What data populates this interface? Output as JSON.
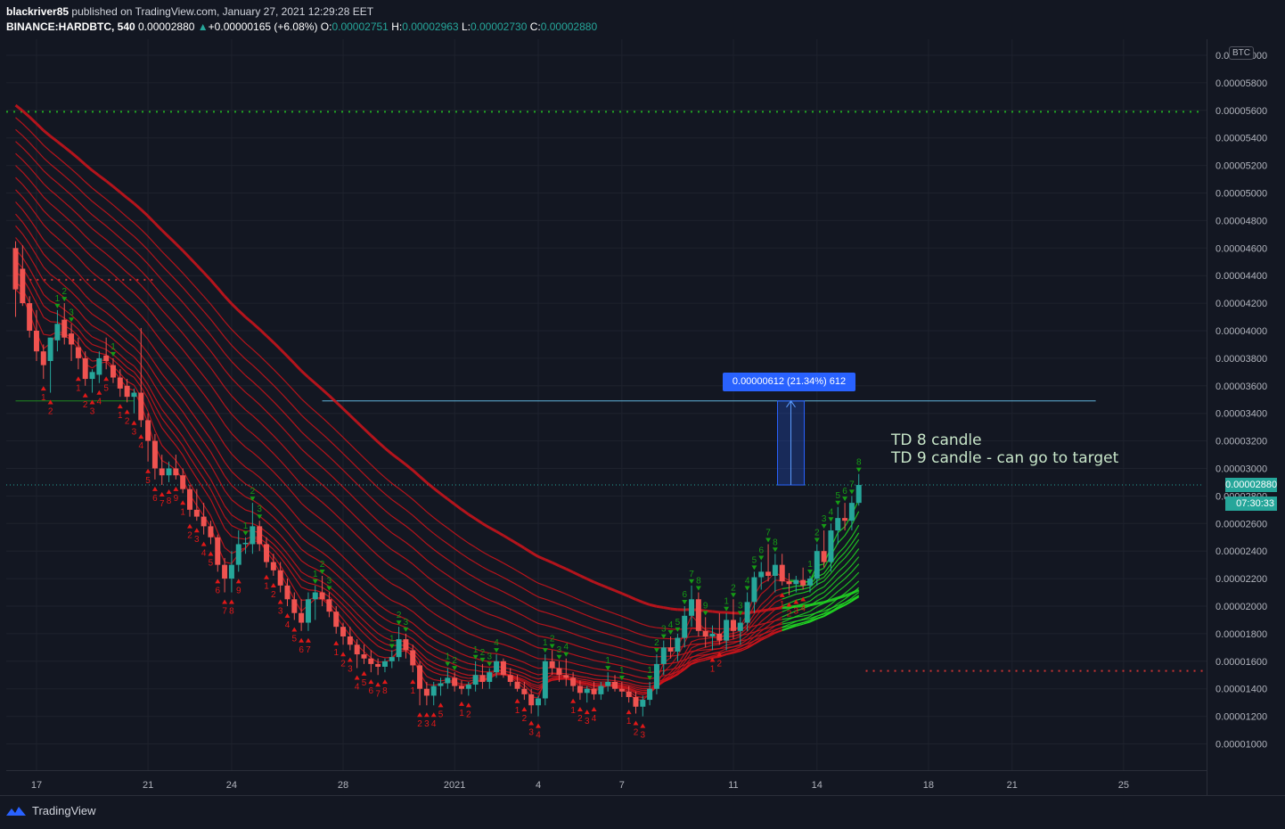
{
  "header": {
    "publisher": "blackriver85",
    "published_text": "published on TradingView.com, January 27, 2021 12:29:28 EET",
    "symbol": "BINANCE:HARDBTC, 540",
    "last": "0.00002880",
    "change_arrow": "▲",
    "change": "+0.00000165 (+6.08%)",
    "o_label": "O:",
    "o_value": "0.00002751",
    "h_label": "H:",
    "h_value": "0.00002963",
    "l_label": "L:",
    "l_value": "0.00002730",
    "c_label": "C:",
    "c_value": "0.00002880"
  },
  "footer": {
    "brand": "TradingView",
    "logo_icon": "tradingview-logo-icon"
  },
  "currency_label": "BTC",
  "measure": {
    "label": "0.00000612 (21.34%) 612"
  },
  "annotation": {
    "line1": "TD 8 candle",
    "line2": "TD 9 candle - can go to target"
  },
  "price_tags": {
    "last_price": "0.00002880",
    "countdown": "07:30:33"
  },
  "colors": {
    "background": "#131722",
    "up": "#26a69a",
    "down": "#ef5350",
    "ribbon_red": "#d1141b",
    "ribbon_green": "#22dd22",
    "td_up": "#159c15",
    "td_down": "#e01818",
    "measure": "#2962ff"
  },
  "chart_data": {
    "type": "candlestick",
    "title": "",
    "xlabel": "",
    "ylabel": "",
    "ylim": [
      8.8e-06,
      6.5e-06
    ],
    "y_ticks": [
      "0.00001000",
      "0.00001200",
      "0.00001400",
      "0.00001600",
      "0.00001800",
      "0.00002000",
      "0.00002200",
      "0.00002400",
      "0.00002600",
      "0.00002800",
      "0.00003000",
      "0.00003200",
      "0.00003400",
      "0.00003600",
      "0.00003800",
      "0.00004000",
      "0.00004200",
      "0.00004400",
      "0.00004600",
      "0.00004800",
      "0.00005000",
      "0.00005200",
      "0.00005400",
      "0.00005600",
      "0.00005800",
      "0.00006000"
    ],
    "x_ticks": [
      {
        "label": "17",
        "bar": 3
      },
      {
        "label": "21",
        "bar": 19
      },
      {
        "label": "24",
        "bar": 31
      },
      {
        "label": "28",
        "bar": 47
      },
      {
        "label": "2021",
        "bar": 63
      },
      {
        "label": "4",
        "bar": 75
      },
      {
        "label": "7",
        "bar": 87
      },
      {
        "label": "11",
        "bar": 103
      },
      {
        "label": "14",
        "bar": 115
      },
      {
        "label": "18",
        "bar": 131
      },
      {
        "label": "21",
        "bar": 143
      },
      {
        "label": "25",
        "bar": 159
      }
    ],
    "horizontal_levels": [
      {
        "name": "resistance-dotted",
        "price": 5.59e-05,
        "style": "dotted",
        "color": "#22aa22"
      },
      {
        "name": "td-resistance-dotted",
        "price": 4.37e-05,
        "style": "dotted",
        "color": "#cc3333",
        "from_bar": 1,
        "to_bar": 20
      },
      {
        "name": "td-support-line",
        "price": 3.49e-05,
        "style": "solid",
        "color": "#1e8a1e",
        "from_bar": 0,
        "to_bar": 17
      },
      {
        "name": "target-line",
        "price": 3.49e-05,
        "style": "solid",
        "color": "#5fb3d9",
        "from_bar": 44,
        "to_bar": 155
      },
      {
        "name": "support-dotted",
        "price": 1.53e-05,
        "style": "dotted",
        "color": "#cc3333",
        "from_bar": 122,
        "to_bar": 171
      },
      {
        "name": "last-price",
        "price": 2.88e-05,
        "style": "dotted",
        "color": "#26a69a"
      }
    ],
    "measure_range": {
      "from": 2.88e-05,
      "to": 3.49e-05,
      "at_bar": 111
    },
    "candles": [
      [
        4.6e-05,
        4.65e-05,
        4.1e-05,
        4.3e-05
      ],
      [
        4.45e-05,
        4.62e-05,
        4.18e-05,
        4.2e-05
      ],
      [
        4.2e-05,
        4.25e-05,
        3.95e-05,
        4e-05
      ],
      [
        4e-05,
        4.15e-05,
        3.78e-05,
        3.85e-05
      ],
      [
        3.85e-05,
        3.9e-05,
        3.65e-05,
        3.75e-05
      ],
      [
        3.78e-05,
        3.95e-05,
        3.55e-05,
        3.95e-05
      ],
      [
        3.93e-05,
        4.15e-05,
        3.85e-05,
        4.05e-05
      ],
      [
        4.08e-05,
        4.2e-05,
        3.9e-05,
        3.95e-05
      ],
      [
        3.98e-05,
        4.05e-05,
        3.78e-05,
        3.9e-05
      ],
      [
        3.88e-05,
        3.95e-05,
        3.72e-05,
        3.8e-05
      ],
      [
        3.8e-05,
        3.85e-05,
        3.6e-05,
        3.65e-05
      ],
      [
        3.65e-05,
        3.72e-05,
        3.55e-05,
        3.7e-05
      ],
      [
        3.68e-05,
        3.85e-05,
        3.62e-05,
        3.8e-05
      ],
      [
        3.82e-05,
        3.95e-05,
        3.72e-05,
        3.78e-05
      ],
      [
        3.75e-05,
        3.8e-05,
        3.62e-05,
        3.66e-05
      ],
      [
        3.66e-05,
        3.72e-05,
        3.52e-05,
        3.58e-05
      ],
      [
        3.6e-05,
        3.65e-05,
        3.48e-05,
        3.52e-05
      ],
      [
        3.52e-05,
        3.58e-05,
        3.4e-05,
        3.55e-05
      ],
      [
        3.55e-05,
        4.02e-05,
        3.3e-05,
        3.35e-05
      ],
      [
        3.35e-05,
        3.4e-05,
        3.05e-05,
        3.2e-05
      ],
      [
        3.2e-05,
        3.25e-05,
        2.92e-05,
        3e-05
      ],
      [
        3e-05,
        3.1e-05,
        2.88e-05,
        2.95e-05
      ],
      [
        2.95e-05,
        3.05e-05,
        2.9e-05,
        3e-05
      ],
      [
        3e-05,
        3.1e-05,
        2.92e-05,
        2.95e-05
      ],
      [
        2.95e-05,
        3e-05,
        2.82e-05,
        2.85e-05
      ],
      [
        2.85e-05,
        2.88e-05,
        2.65e-05,
        2.7e-05
      ],
      [
        2.7e-05,
        2.85e-05,
        2.62e-05,
        2.65e-05
      ],
      [
        2.65e-05,
        2.75e-05,
        2.52e-05,
        2.58e-05
      ],
      [
        2.58e-05,
        2.62e-05,
        2.45e-05,
        2.5e-05
      ],
      [
        2.5e-05,
        2.52e-05,
        2.25e-05,
        2.3e-05
      ],
      [
        2.3e-05,
        2.35e-05,
        2.1e-05,
        2.2e-05
      ],
      [
        2.2e-05,
        2.4e-05,
        2.1e-05,
        2.3e-05
      ],
      [
        2.3e-05,
        2.55e-05,
        2.25e-05,
        2.45e-05
      ],
      [
        2.45e-05,
        2.5e-05,
        2.38e-05,
        2.46e-05
      ],
      [
        2.45e-05,
        2.75e-05,
        2.38e-05,
        2.58e-05
      ],
      [
        2.58e-05,
        2.62e-05,
        2.4e-05,
        2.45e-05
      ],
      [
        2.45e-05,
        2.5e-05,
        2.28e-05,
        2.32e-05
      ],
      [
        2.32e-05,
        2.38e-05,
        2.22e-05,
        2.26e-05
      ],
      [
        2.26e-05,
        2.32e-05,
        2.1e-05,
        2.15e-05
      ],
      [
        2.15e-05,
        2.2e-05,
        2e-05,
        2.05e-05
      ],
      [
        2.05e-05,
        2.1e-05,
        1.9e-05,
        1.95e-05
      ],
      [
        1.95e-05,
        2.05e-05,
        1.82e-05,
        1.88e-05
      ],
      [
        1.88e-05,
        2.1e-05,
        1.82e-05,
        2.05e-05
      ],
      [
        2.05e-05,
        2.15e-05,
        1.9e-05,
        2.1e-05
      ],
      [
        2.1e-05,
        2.22e-05,
        2e-05,
        2.05e-05
      ],
      [
        2.05e-05,
        2.1e-05,
        1.92e-05,
        1.96e-05
      ],
      [
        1.96e-05,
        2e-05,
        1.8e-05,
        1.85e-05
      ],
      [
        1.85e-05,
        1.88e-05,
        1.72e-05,
        1.78e-05
      ],
      [
        1.78e-05,
        1.85e-05,
        1.68e-05,
        1.72e-05
      ],
      [
        1.72e-05,
        1.76e-05,
        1.55e-05,
        1.65e-05
      ],
      [
        1.65e-05,
        1.72e-05,
        1.58e-05,
        1.62e-05
      ],
      [
        1.62e-05,
        1.68e-05,
        1.52e-05,
        1.58e-05
      ],
      [
        1.58e-05,
        1.62e-05,
        1.5e-05,
        1.56e-05
      ],
      [
        1.56e-05,
        1.62e-05,
        1.52e-05,
        1.6e-05
      ],
      [
        1.6e-05,
        1.68e-05,
        1.55e-05,
        1.63e-05
      ],
      [
        1.63e-05,
        1.85e-05,
        1.6e-05,
        1.76e-05
      ],
      [
        1.76e-05,
        1.8e-05,
        1.62e-05,
        1.68e-05
      ],
      [
        1.68e-05,
        1.72e-05,
        1.52e-05,
        1.57e-05
      ],
      [
        1.57e-05,
        1.6e-05,
        1.28e-05,
        1.4e-05
      ],
      [
        1.4e-05,
        1.45e-05,
        1.28e-05,
        1.35e-05
      ],
      [
        1.35e-05,
        1.45e-05,
        1.28e-05,
        1.42e-05
      ],
      [
        1.42e-05,
        1.48e-05,
        1.35e-05,
        1.44e-05
      ],
      [
        1.44e-05,
        1.55e-05,
        1.4e-05,
        1.48e-05
      ],
      [
        1.48e-05,
        1.52e-05,
        1.38e-05,
        1.42e-05
      ],
      [
        1.42e-05,
        1.46e-05,
        1.36e-05,
        1.4e-05
      ],
      [
        1.4e-05,
        1.45e-05,
        1.35e-05,
        1.43e-05
      ],
      [
        1.43e-05,
        1.6e-05,
        1.38e-05,
        1.5e-05
      ],
      [
        1.5e-05,
        1.58e-05,
        1.4e-05,
        1.45e-05
      ],
      [
        1.45e-05,
        1.55e-05,
        1.4e-05,
        1.52e-05
      ],
      [
        1.52e-05,
        1.65e-05,
        1.48e-05,
        1.6e-05
      ],
      [
        1.6e-05,
        1.62e-05,
        1.48e-05,
        1.5e-05
      ],
      [
        1.5e-05,
        1.55e-05,
        1.42e-05,
        1.45e-05
      ],
      [
        1.45e-05,
        1.5e-05,
        1.38e-05,
        1.4e-05
      ],
      [
        1.4e-05,
        1.45e-05,
        1.32e-05,
        1.36e-05
      ],
      [
        1.36e-05,
        1.4e-05,
        1.22e-05,
        1.28e-05
      ],
      [
        1.28e-05,
        1.35e-05,
        1.2e-05,
        1.33e-05
      ],
      [
        1.33e-05,
        1.65e-05,
        1.28e-05,
        1.6e-05
      ],
      [
        1.6e-05,
        1.68e-05,
        1.5e-05,
        1.55e-05
      ],
      [
        1.55e-05,
        1.6e-05,
        1.45e-05,
        1.5e-05
      ],
      [
        1.5e-05,
        1.62e-05,
        1.42e-05,
        1.48e-05
      ],
      [
        1.48e-05,
        1.52e-05,
        1.38e-05,
        1.42e-05
      ],
      [
        1.42e-05,
        1.46e-05,
        1.32e-05,
        1.37e-05
      ],
      [
        1.37e-05,
        1.42e-05,
        1.3e-05,
        1.4e-05
      ],
      [
        1.4e-05,
        1.45e-05,
        1.32e-05,
        1.36e-05
      ],
      [
        1.36e-05,
        1.45e-05,
        1.32e-05,
        1.42e-05
      ],
      [
        1.42e-05,
        1.52e-05,
        1.38e-05,
        1.45e-05
      ],
      [
        1.45e-05,
        1.5e-05,
        1.38e-05,
        1.4e-05
      ],
      [
        1.4e-05,
        1.45e-05,
        1.34e-05,
        1.38e-05
      ],
      [
        1.38e-05,
        1.42e-05,
        1.3e-05,
        1.34e-05
      ],
      [
        1.34e-05,
        1.38e-05,
        1.22e-05,
        1.27e-05
      ],
      [
        1.27e-05,
        1.35e-05,
        1.2e-05,
        1.32e-05
      ],
      [
        1.32e-05,
        1.45e-05,
        1.28e-05,
        1.4e-05
      ],
      [
        1.4e-05,
        1.65e-05,
        1.36e-05,
        1.58e-05
      ],
      [
        1.58e-05,
        1.75e-05,
        1.5e-05,
        1.7e-05
      ],
      [
        1.7e-05,
        1.78e-05,
        1.62e-05,
        1.67e-05
      ],
      [
        1.67e-05,
        1.8e-05,
        1.6e-05,
        1.77e-05
      ],
      [
        1.77e-05,
        2e-05,
        1.7e-05,
        1.93e-05
      ],
      [
        1.93e-05,
        2.15e-05,
        1.85e-05,
        2.05e-05
      ],
      [
        2.05e-05,
        2.1e-05,
        1.78e-05,
        1.82e-05
      ],
      [
        1.82e-05,
        1.92e-05,
        1.7e-05,
        1.78e-05
      ],
      [
        1.78e-05,
        1.86e-05,
        1.68e-05,
        1.8e-05
      ],
      [
        1.8e-05,
        1.95e-05,
        1.72e-05,
        1.75e-05
      ],
      [
        1.75e-05,
        1.95e-05,
        1.68e-05,
        1.9e-05
      ],
      [
        1.9e-05,
        2.05e-05,
        1.76e-05,
        1.82e-05
      ],
      [
        1.82e-05,
        1.92e-05,
        1.72e-05,
        1.88e-05
      ],
      [
        1.88e-05,
        2.1e-05,
        1.82e-05,
        2.03e-05
      ],
      [
        2.03e-05,
        2.25e-05,
        1.95e-05,
        2.21e-05
      ],
      [
        2.21e-05,
        2.32e-05,
        2.12e-05,
        2.25e-05
      ],
      [
        2.25e-05,
        2.45e-05,
        2.18e-05,
        2.22e-05
      ],
      [
        2.22e-05,
        2.38e-05,
        2.1e-05,
        2.3e-05
      ],
      [
        2.3e-05,
        2.38e-05,
        2.15e-05,
        2.18e-05
      ],
      [
        2.18e-05,
        2.24e-05,
        2.08e-05,
        2.16e-05
      ],
      [
        2.16e-05,
        2.22e-05,
        2.1e-05,
        2.19e-05
      ],
      [
        2.19e-05,
        2.28e-05,
        2.12e-05,
        2.15e-05
      ],
      [
        2.15e-05,
        2.22e-05,
        2.1e-05,
        2.2e-05
      ],
      [
        2.2e-05,
        2.45e-05,
        2.15e-05,
        2.4e-05
      ],
      [
        2.4e-05,
        2.55e-05,
        2.28e-05,
        2.32e-05
      ],
      [
        2.32e-05,
        2.6e-05,
        2.25e-05,
        2.55e-05
      ],
      [
        2.55e-05,
        2.72e-05,
        2.45e-05,
        2.64e-05
      ],
      [
        2.64e-05,
        2.75e-05,
        2.55e-05,
        2.62e-05
      ],
      [
        2.62e-05,
        2.8e-05,
        2.55e-05,
        2.75e-05
      ],
      [
        2.75e-05,
        2.96e-05,
        2.73e-05,
        2.88e-05
      ]
    ]
  }
}
